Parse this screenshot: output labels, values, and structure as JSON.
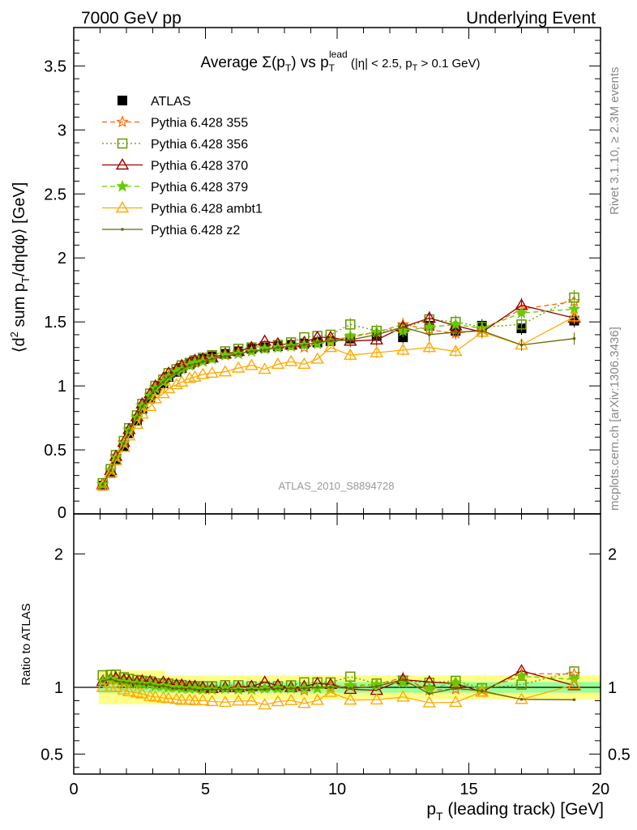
{
  "header": {
    "left": "7000 GeV pp",
    "right": "Underlying Event"
  },
  "side_labels": {
    "rivet": "Rivet 3.1.10, ≥ 2.3M events",
    "mcplots": "mcplots.cern.ch [arXiv:1306.3436]"
  },
  "chart_data": {
    "type": "scatter",
    "title": "Average Σ(p_T) vs p_T^lead (|η| < 2.5, p_T > 0.1 GeV)",
    "watermark": "ATLAS_2010_S8894728",
    "xlabel": "p_T (leading track) [GeV]",
    "ylabel": "⟨d² sum p_T/dηdφ⟩ [GeV]",
    "ratio_ylabel": "Ratio to ATLAS",
    "xlim": [
      0,
      20
    ],
    "ylim": [
      0,
      3.8
    ],
    "ratio_ylim": [
      0.35,
      2.3
    ],
    "xticks": [
      0,
      5,
      10,
      15,
      20
    ],
    "yticks": [
      0.5,
      1,
      1.5,
      2,
      2.5,
      3,
      3.5
    ],
    "ratio_yticks": [
      0.5,
      1,
      2
    ],
    "legend_position": "top-left",
    "x": [
      1.1,
      1.4,
      1.6,
      1.9,
      2.1,
      2.4,
      2.6,
      2.9,
      3.1,
      3.4,
      3.6,
      3.9,
      4.1,
      4.4,
      4.6,
      4.9,
      5.25,
      5.75,
      6.25,
      6.75,
      7.25,
      7.75,
      8.25,
      8.75,
      9.25,
      9.75,
      10.5,
      11.5,
      12.5,
      13.5,
      14.5,
      15.5,
      17.0,
      19.0
    ],
    "series": [
      {
        "name": "ATLAS",
        "color": "#000000",
        "marker": "square-filled",
        "line": "none",
        "values": [
          0.22,
          0.32,
          0.42,
          0.53,
          0.63,
          0.73,
          0.82,
          0.9,
          0.97,
          1.02,
          1.07,
          1.11,
          1.14,
          1.17,
          1.19,
          1.21,
          1.23,
          1.25,
          1.27,
          1.29,
          1.3,
          1.31,
          1.32,
          1.33,
          1.34,
          1.35,
          1.37,
          1.39,
          1.38,
          1.47,
          1.43,
          1.47,
          1.45,
          1.51
        ],
        "band_inner": 0.04,
        "band_outer": 0.09
      },
      {
        "name": "Pythia 6.428 355",
        "color": "#ff6600",
        "marker": "star-open",
        "line": "dashed",
        "values": [
          0.23,
          0.34,
          0.45,
          0.56,
          0.66,
          0.76,
          0.85,
          0.93,
          0.99,
          1.04,
          1.08,
          1.12,
          1.15,
          1.17,
          1.19,
          1.2,
          1.23,
          1.24,
          1.26,
          1.27,
          1.29,
          1.3,
          1.31,
          1.3,
          1.33,
          1.36,
          1.38,
          1.42,
          1.48,
          1.44,
          1.41,
          1.44,
          1.6,
          1.66
        ]
      },
      {
        "name": "Pythia 6.428 356",
        "color": "#669900",
        "marker": "square-open",
        "line": "dotted",
        "values": [
          0.24,
          0.35,
          0.46,
          0.57,
          0.67,
          0.77,
          0.86,
          0.94,
          1.0,
          1.05,
          1.1,
          1.13,
          1.16,
          1.18,
          1.2,
          1.22,
          1.24,
          1.27,
          1.29,
          1.3,
          1.31,
          1.32,
          1.34,
          1.38,
          1.39,
          1.4,
          1.48,
          1.43,
          1.45,
          1.52,
          1.5,
          1.46,
          1.48,
          1.69
        ]
      },
      {
        "name": "Pythia 6.428 370",
        "color": "#990000",
        "marker": "triangle-open",
        "line": "solid",
        "values": [
          0.23,
          0.34,
          0.45,
          0.56,
          0.66,
          0.76,
          0.86,
          0.94,
          1.0,
          1.06,
          1.1,
          1.13,
          1.16,
          1.18,
          1.2,
          1.21,
          1.22,
          1.25,
          1.27,
          1.3,
          1.35,
          1.33,
          1.32,
          1.34,
          1.38,
          1.38,
          1.35,
          1.36,
          1.46,
          1.53,
          1.47,
          1.42,
          1.63,
          1.53
        ]
      },
      {
        "name": "Pythia 6.428 379",
        "color": "#66cc00",
        "marker": "star-filled",
        "line": "dashed",
        "values": [
          0.23,
          0.34,
          0.44,
          0.55,
          0.65,
          0.75,
          0.84,
          0.92,
          0.98,
          1.03,
          1.07,
          1.11,
          1.13,
          1.16,
          1.18,
          1.19,
          1.21,
          1.24,
          1.25,
          1.27,
          1.29,
          1.3,
          1.31,
          1.32,
          1.33,
          1.34,
          1.39,
          1.42,
          1.43,
          1.46,
          1.48,
          1.45,
          1.57,
          1.6
        ]
      },
      {
        "name": "Pythia 6.428 ambt1",
        "color": "#ffaa00",
        "marker": "triangle-open",
        "line": "solid",
        "values": [
          0.22,
          0.32,
          0.42,
          0.52,
          0.61,
          0.7,
          0.78,
          0.84,
          0.9,
          0.94,
          0.98,
          1.01,
          1.03,
          1.06,
          1.07,
          1.09,
          1.1,
          1.11,
          1.14,
          1.16,
          1.13,
          1.17,
          1.19,
          1.17,
          1.21,
          1.3,
          1.24,
          1.26,
          1.28,
          1.3,
          1.27,
          1.42,
          1.32,
          1.54
        ]
      },
      {
        "name": "Pythia 6.428 z2",
        "color": "#666600",
        "marker": "dot",
        "line": "solid",
        "values": [
          0.23,
          0.34,
          0.44,
          0.55,
          0.65,
          0.75,
          0.84,
          0.92,
          0.98,
          1.03,
          1.07,
          1.1,
          1.13,
          1.16,
          1.17,
          1.19,
          1.21,
          1.23,
          1.25,
          1.27,
          1.28,
          1.3,
          1.31,
          1.32,
          1.34,
          1.35,
          1.36,
          1.4,
          1.46,
          1.4,
          1.42,
          1.43,
          1.32,
          1.37
        ]
      }
    ]
  }
}
